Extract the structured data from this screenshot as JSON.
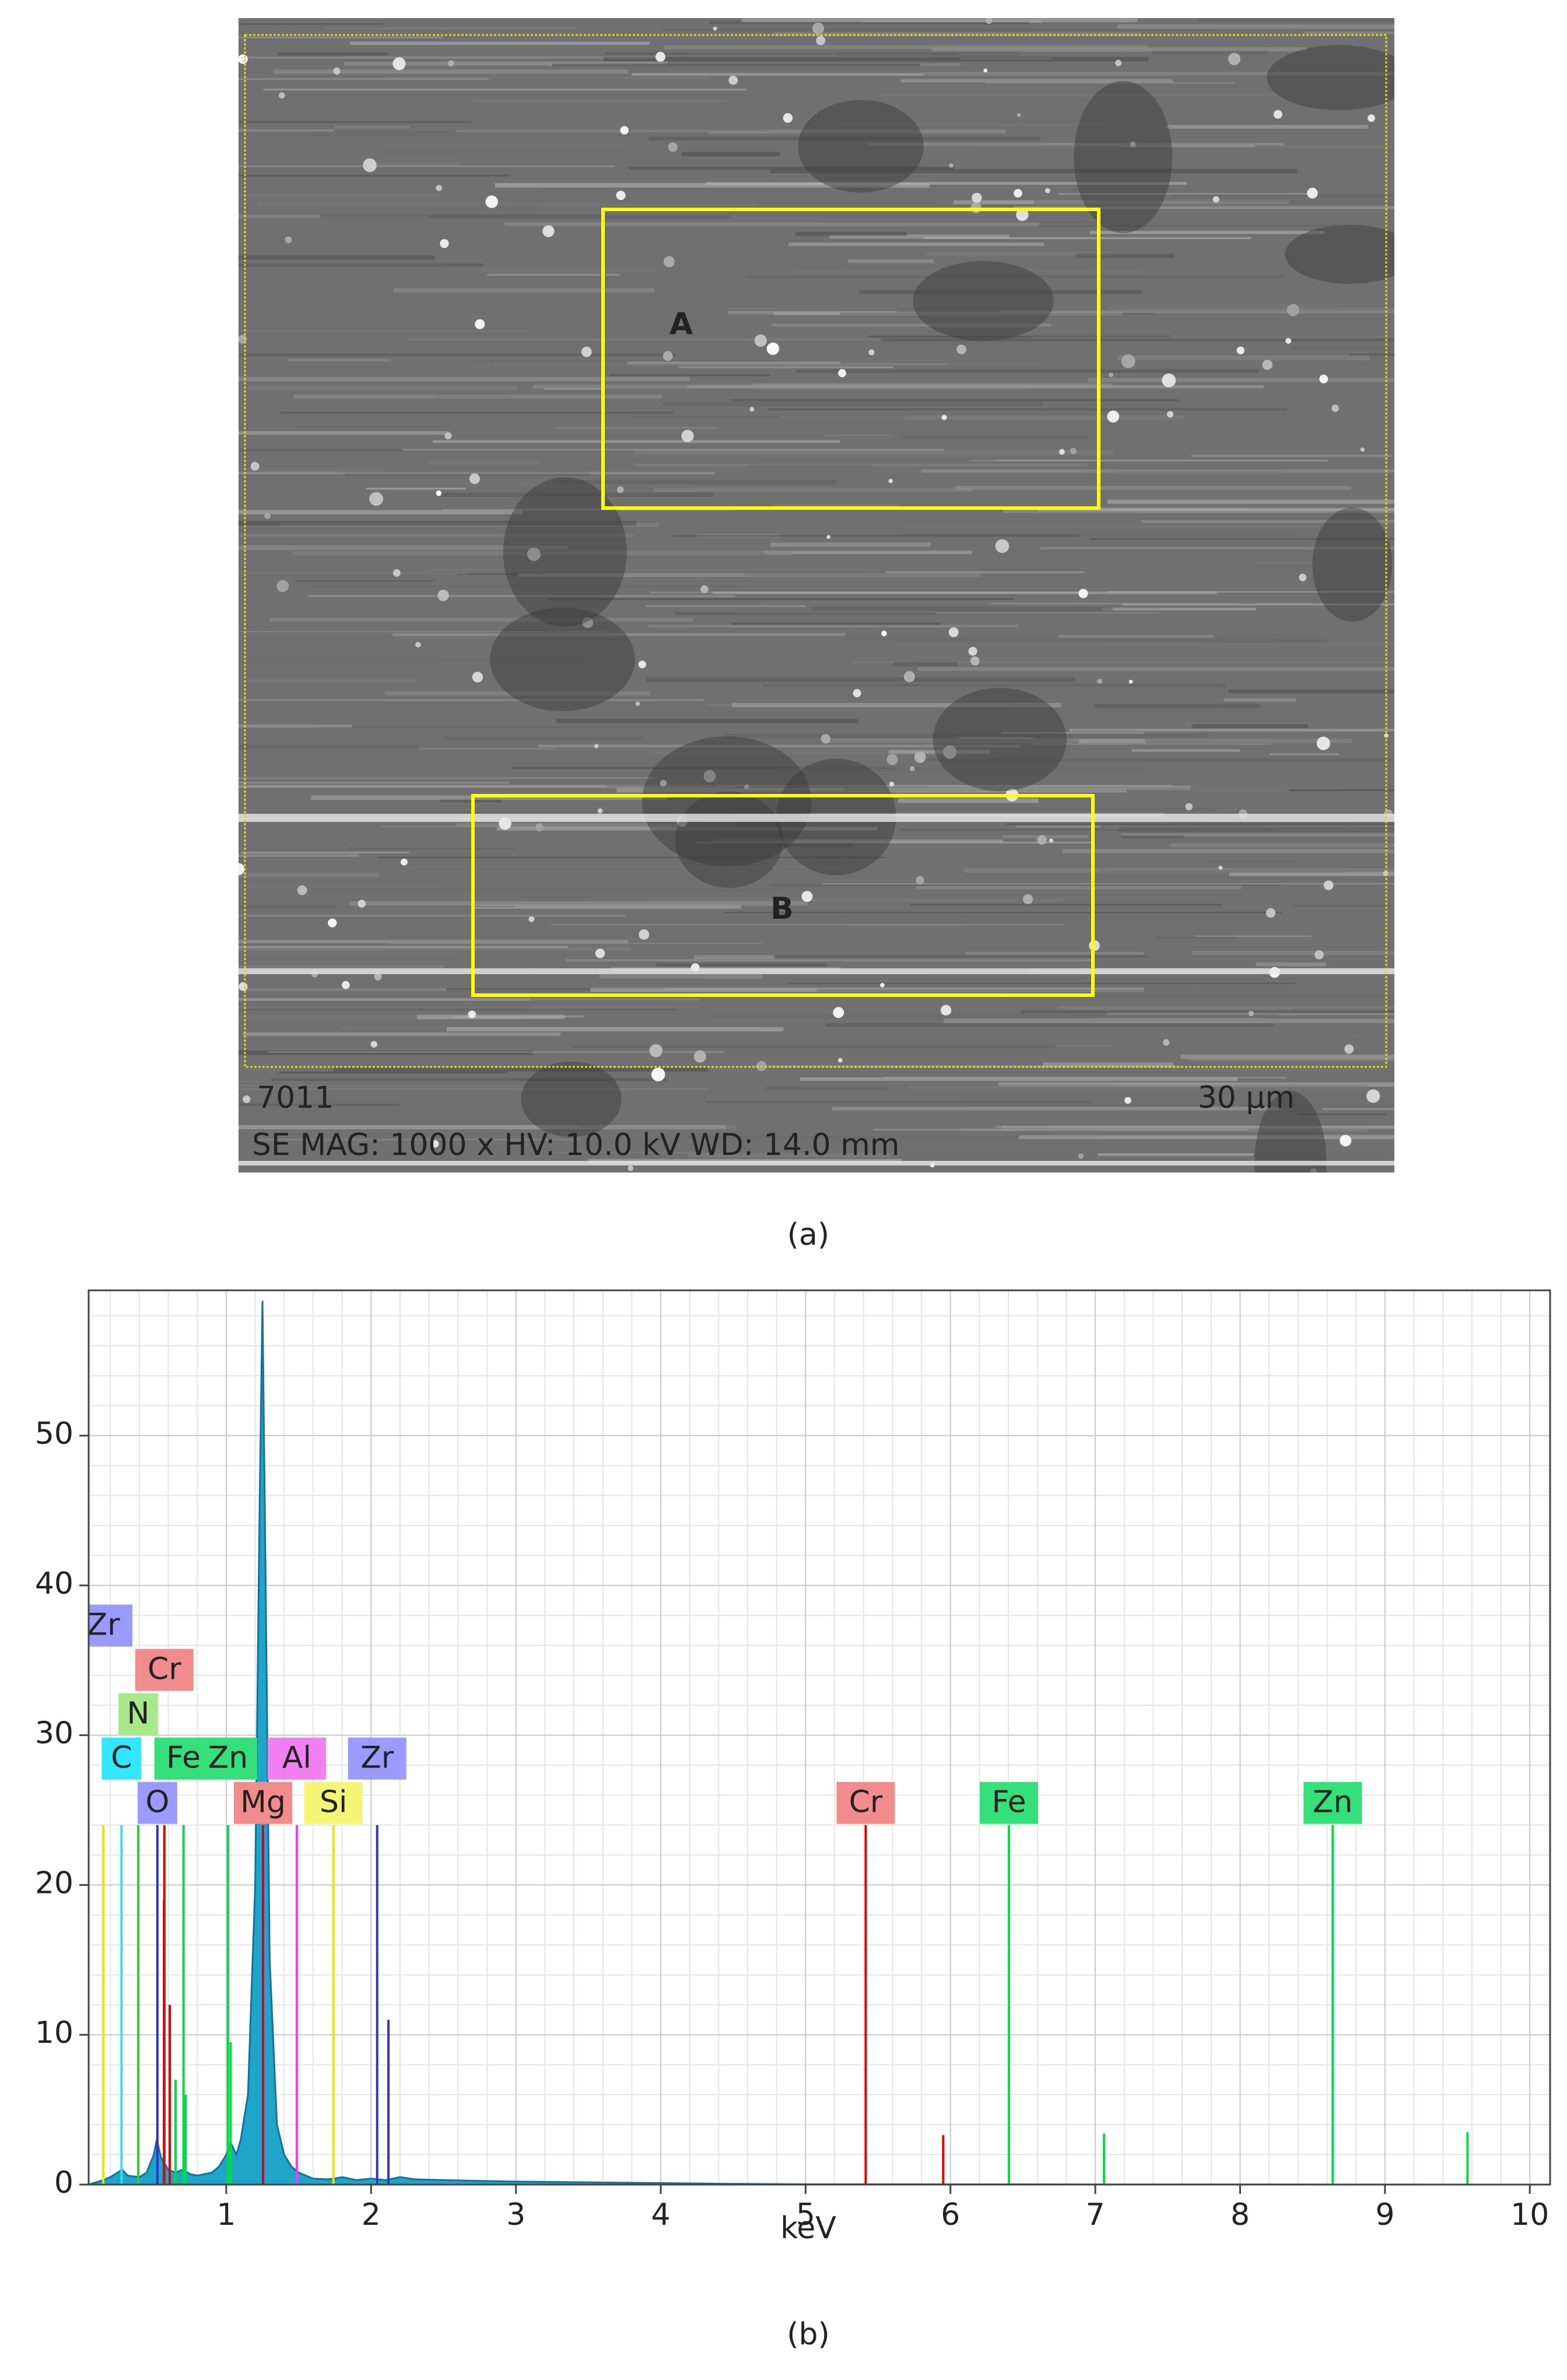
{
  "panel_a": {
    "caption": "(a)",
    "region_a": "A",
    "region_b": "B",
    "sample_id": "7011",
    "scale_bar": "30 µm",
    "info": "SE  MAG: 1000 x  HV: 10.0 kV  WD: 14.0 mm"
  },
  "chart_data": {
    "type": "area",
    "caption": "(b)",
    "x_label": "keV",
    "xlim": [
      0.05,
      10.14
    ],
    "ylim": [
      0,
      59.7
    ],
    "xticks": [
      1,
      2,
      3,
      4,
      5,
      6,
      7,
      8,
      9,
      10
    ],
    "yticks": [
      0,
      10,
      20,
      30,
      40,
      50
    ],
    "grid": true,
    "series": [
      {
        "color": "#1ea5c9",
        "x": [
          0.05,
          0.15,
          0.2,
          0.25,
          0.28,
          0.32,
          0.4,
          0.45,
          0.5,
          0.52,
          0.55,
          0.6,
          0.65,
          0.7,
          0.75,
          0.8,
          0.9,
          0.95,
          1.0,
          1.03,
          1.07,
          1.1,
          1.15,
          1.2,
          1.23,
          1.25,
          1.27,
          1.3,
          1.35,
          1.4,
          1.45,
          1.5,
          1.55,
          1.6,
          1.7,
          1.75,
          1.8,
          1.9,
          2.0,
          2.1,
          2.2,
          2.3,
          2.5,
          3.0,
          3.5,
          4.0,
          4.5,
          5.0,
          10.0
        ],
        "values": [
          0,
          0.3,
          0.5,
          0.8,
          1.0,
          0.6,
          0.5,
          0.8,
          2.0,
          3.0,
          1.8,
          1.0,
          0.8,
          1.0,
          0.7,
          0.6,
          0.8,
          1.2,
          2.0,
          2.8,
          2.0,
          3.0,
          6,
          20,
          45,
          59,
          42,
          15,
          4,
          2.0,
          1.2,
          0.8,
          0.6,
          0.4,
          0.35,
          0.4,
          0.5,
          0.3,
          0.4,
          0.3,
          0.5,
          0.35,
          0.3,
          0.2,
          0.15,
          0.1,
          0.05,
          0.02,
          0
        ]
      }
    ],
    "lines": [
      {
        "label": "Zr",
        "x": 0.151,
        "value": 24,
        "color": "#e6e600",
        "box_color": "#9a9aff"
      },
      {
        "label": "Cr",
        "x": 0.573,
        "value": 24,
        "color": "#e00000",
        "box_color": "#f28b8b"
      },
      {
        "label": "N",
        "x": 0.392,
        "value": 24,
        "color": "#33cc33",
        "box_color": "#a8e88a"
      },
      {
        "label": "C",
        "x": 0.277,
        "value": 24,
        "color": "#33ddee",
        "box_color": "#33e6ff"
      },
      {
        "label": "Fe",
        "x": 0.705,
        "value": 24,
        "color": "#00dd44",
        "box_color": "#33e07a"
      },
      {
        "label": "Zn",
        "x": 1.012,
        "value": 24,
        "color": "#00dd44",
        "box_color": "#33e07a"
      },
      {
        "label": "Al",
        "x": 1.487,
        "value": 24,
        "color": "#ff33ff",
        "box_color": "#f27ff2"
      },
      {
        "label": "Zr",
        "x": 2.042,
        "value": 24,
        "color": "#3333cc",
        "box_color": "#9a9aff"
      },
      {
        "label": "O",
        "x": 0.525,
        "value": 24,
        "color": "#3333cc",
        "box_color": "#9a9aff"
      },
      {
        "label": "Mg",
        "x": 1.254,
        "value": 24,
        "color": "#cc0033",
        "box_color": "#f28b8b"
      },
      {
        "label": "Si",
        "x": 1.74,
        "value": 24,
        "color": "#e6e600",
        "box_color": "#f5f575"
      },
      {
        "label": "Cr",
        "x": 5.415,
        "value": 24,
        "color": "#e00000",
        "box_color": "#f28b8b"
      },
      {
        "label": "Fe",
        "x": 6.404,
        "value": 24,
        "color": "#00dd44",
        "box_color": "#33e07a"
      },
      {
        "label": "Zn",
        "x": 8.639,
        "value": 24,
        "color": "#00dd44",
        "box_color": "#33e07a"
      }
    ],
    "minor_lines": [
      {
        "x": 0.57,
        "value": 19,
        "color": "#e00000"
      },
      {
        "x": 0.61,
        "value": 12,
        "color": "#e00000"
      },
      {
        "x": 0.65,
        "value": 7,
        "color": "#00dd44"
      },
      {
        "x": 0.72,
        "value": 6,
        "color": "#00dd44"
      },
      {
        "x": 1.03,
        "value": 9.5,
        "color": "#00dd44"
      },
      {
        "x": 2.12,
        "value": 11,
        "color": "#3333cc"
      },
      {
        "x": 5.95,
        "value": 3.3,
        "color": "#e00000"
      },
      {
        "x": 7.06,
        "value": 3.4,
        "color": "#00dd44"
      },
      {
        "x": 9.57,
        "value": 3.5,
        "color": "#00dd44"
      }
    ]
  }
}
